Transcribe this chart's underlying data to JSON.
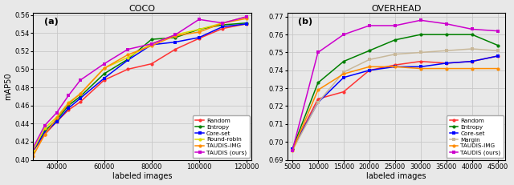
{
  "coco": {
    "title": "COCO",
    "xlabel": "labeled images",
    "ylabel": "mAP50",
    "xlim": [
      30000,
      122000
    ],
    "ylim": [
      0.4,
      0.562
    ],
    "yticks": [
      0.4,
      0.42,
      0.44,
      0.46,
      0.48,
      0.5,
      0.52,
      0.54,
      0.56
    ],
    "xticks": [
      40000,
      60000,
      80000,
      100000,
      120000
    ],
    "label": "(a)",
    "series": [
      {
        "name": "Random",
        "color": "#ff3333",
        "marker": "o",
        "x": [
          30000,
          35000,
          40000,
          45000,
          50000,
          60000,
          70000,
          80000,
          90000,
          100000,
          110000,
          120000
        ],
        "y": [
          0.409,
          0.428,
          0.442,
          0.455,
          0.464,
          0.488,
          0.5,
          0.506,
          0.522,
          0.534,
          0.545,
          0.55
        ]
      },
      {
        "name": "Entropy",
        "color": "#008000",
        "marker": "o",
        "x": [
          30000,
          35000,
          40000,
          45000,
          50000,
          60000,
          70000,
          80000,
          90000,
          100000,
          110000,
          120000
        ],
        "y": [
          0.409,
          0.432,
          0.444,
          0.46,
          0.47,
          0.495,
          0.511,
          0.533,
          0.535,
          0.544,
          0.549,
          0.551
        ]
      },
      {
        "name": "Core-set",
        "color": "#0000ff",
        "marker": "s",
        "x": [
          30000,
          35000,
          40000,
          45000,
          50000,
          60000,
          70000,
          80000,
          90000,
          100000,
          110000,
          120000
        ],
        "y": [
          0.41,
          0.43,
          0.442,
          0.457,
          0.468,
          0.49,
          0.51,
          0.527,
          0.53,
          0.535,
          0.547,
          0.55
        ]
      },
      {
        "name": "Round-robin",
        "color": "#dddd00",
        "marker": "o",
        "x": [
          30000,
          35000,
          40000,
          45000,
          50000,
          60000,
          70000,
          80000,
          90000,
          100000,
          110000,
          120000
        ],
        "y": [
          0.41,
          0.435,
          0.447,
          0.463,
          0.473,
          0.501,
          0.513,
          0.528,
          0.538,
          0.544,
          0.551,
          0.558
        ]
      },
      {
        "name": "TAUDIS-IMG",
        "color": "#ff8c00",
        "marker": "o",
        "x": [
          30000,
          35000,
          40000,
          45000,
          50000,
          60000,
          70000,
          80000,
          90000,
          100000,
          110000,
          120000
        ],
        "y": [
          0.404,
          0.428,
          0.446,
          0.462,
          0.473,
          0.501,
          0.516,
          0.526,
          0.537,
          0.541,
          0.551,
          0.556
        ]
      },
      {
        "name": "TAUDIS (ours)",
        "color": "#cc00cc",
        "marker": "s",
        "x": [
          30000,
          35000,
          40000,
          45000,
          50000,
          60000,
          70000,
          80000,
          90000,
          100000,
          110000,
          120000
        ],
        "y": [
          0.413,
          0.438,
          0.452,
          0.471,
          0.488,
          0.506,
          0.522,
          0.528,
          0.538,
          0.555,
          0.551,
          0.558
        ]
      }
    ]
  },
  "overhead": {
    "title": "OVERHEAD",
    "xlabel": "labeled images",
    "ylabel": "mAP50",
    "xlim": [
      4000,
      46500
    ],
    "ylim": [
      0.69,
      0.772
    ],
    "yticks": [
      0.69,
      0.7,
      0.71,
      0.72,
      0.73,
      0.74,
      0.75,
      0.76,
      0.77
    ],
    "xticks": [
      5000,
      10000,
      15000,
      20000,
      25000,
      30000,
      35000,
      40000,
      45000
    ],
    "label": "(b)",
    "series": [
      {
        "name": "Random",
        "color": "#ff3333",
        "marker": "o",
        "x": [
          5000,
          10000,
          15000,
          20000,
          25000,
          30000,
          35000,
          40000,
          45000
        ],
        "y": [
          0.696,
          0.724,
          0.728,
          0.74,
          0.743,
          0.745,
          0.744,
          0.745,
          0.748
        ]
      },
      {
        "name": "Entropy",
        "color": "#008000",
        "marker": "o",
        "x": [
          5000,
          10000,
          15000,
          20000,
          25000,
          30000,
          35000,
          40000,
          45000
        ],
        "y": [
          0.696,
          0.733,
          0.745,
          0.751,
          0.757,
          0.76,
          0.76,
          0.76,
          0.754
        ]
      },
      {
        "name": "Core-set",
        "color": "#0000ff",
        "marker": "s",
        "x": [
          5000,
          10000,
          15000,
          20000,
          25000,
          30000,
          35000,
          40000,
          45000
        ],
        "y": [
          0.696,
          0.722,
          0.736,
          0.74,
          0.742,
          0.742,
          0.744,
          0.745,
          0.748
        ]
      },
      {
        "name": "Margin",
        "color": "#c8b89a",
        "marker": "s",
        "x": [
          5000,
          10000,
          15000,
          20000,
          25000,
          30000,
          35000,
          40000,
          45000
        ],
        "y": [
          0.695,
          0.722,
          0.739,
          0.746,
          0.749,
          0.75,
          0.751,
          0.752,
          0.751
        ]
      },
      {
        "name": "TAUDIS-IMG",
        "color": "#ff8c00",
        "marker": "o",
        "x": [
          5000,
          10000,
          15000,
          20000,
          25000,
          30000,
          35000,
          40000,
          45000
        ],
        "y": [
          0.695,
          0.729,
          0.738,
          0.742,
          0.742,
          0.741,
          0.741,
          0.741,
          0.741
        ]
      },
      {
        "name": "TAUDIS (ours)",
        "color": "#cc00cc",
        "marker": "s",
        "x": [
          5000,
          10000,
          15000,
          20000,
          25000,
          30000,
          35000,
          40000,
          45000
        ],
        "y": [
          0.695,
          0.75,
          0.76,
          0.765,
          0.765,
          0.768,
          0.766,
          0.763,
          0.762
        ]
      }
    ]
  },
  "figure_bg": "#e8e8e8",
  "axes_bg": "#e8e8e8"
}
